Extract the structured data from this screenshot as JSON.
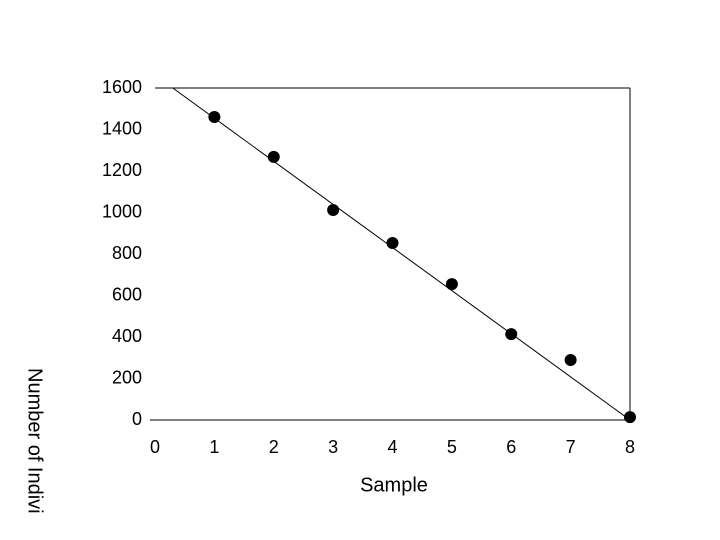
{
  "chart_data": {
    "type": "scatter",
    "x_label": "Sample",
    "y_label": "Number of Indivi",
    "x": [
      1,
      2,
      3,
      4,
      5,
      6,
      7,
      8
    ],
    "values": [
      1460,
      1268,
      1012,
      853,
      655,
      414,
      289,
      14
    ],
    "color": "#000000",
    "trend_line": {
      "x": [
        0.3,
        8
      ],
      "values": [
        1600,
        0
      ],
      "color": "#000000"
    },
    "xlim": [
      0,
      8
    ],
    "ylim": [
      0,
      1600
    ],
    "xticks": [
      0,
      1,
      2,
      3,
      4,
      5,
      6,
      7,
      8
    ],
    "yticks": [
      0,
      200,
      400,
      600,
      800,
      1000,
      1200,
      1400,
      1600
    ]
  }
}
